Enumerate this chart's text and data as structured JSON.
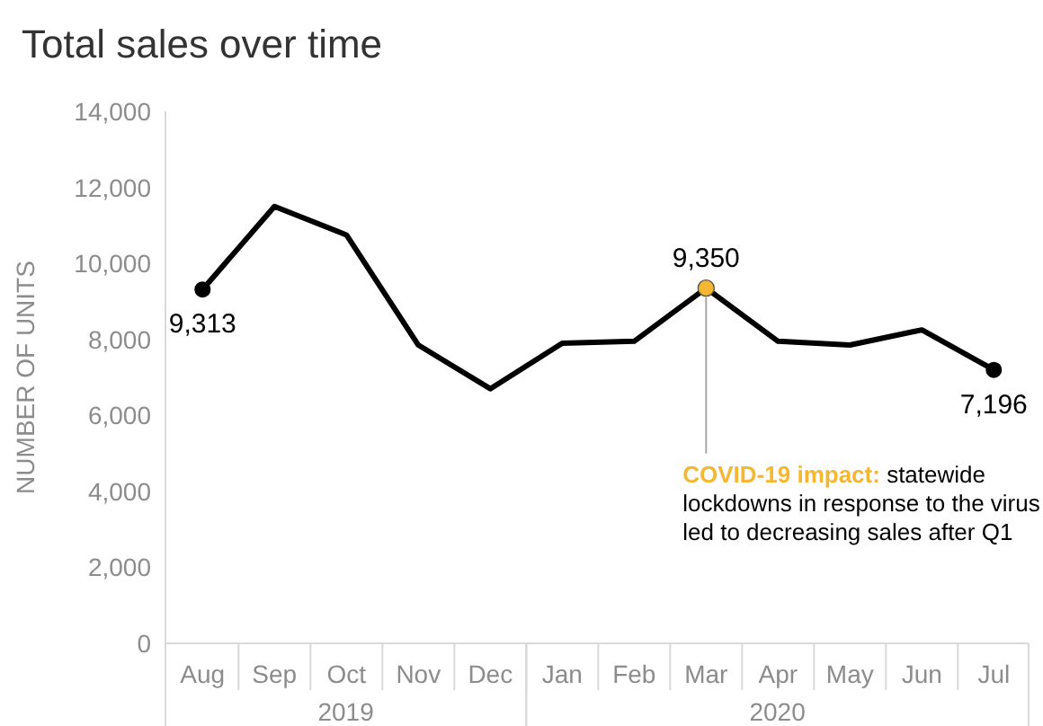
{
  "chart_data": {
    "type": "line",
    "title": "Total sales over time",
    "ylabel": "NUMBER OF UNITS",
    "x": [
      "2019-08",
      "2019-09",
      "2019-10",
      "2019-11",
      "2019-12",
      "2020-01",
      "2020-02",
      "2020-03",
      "2020-04",
      "2020-05",
      "2020-06",
      "2020-07"
    ],
    "xlim": [
      "2019-07-16",
      "2020-07-16"
    ],
    "xticks": [
      {
        "value": "2019-08",
        "label": "Aug"
      },
      {
        "value": "2019-09",
        "label": "Sep"
      },
      {
        "value": "2019-10",
        "label": "Oct"
      },
      {
        "value": "2019-11",
        "label": "Nov"
      },
      {
        "value": "2019-12",
        "label": "Dec"
      },
      {
        "value": "2020-01",
        "label": "Jan"
      },
      {
        "value": "2020-02",
        "label": "Feb"
      },
      {
        "value": "2020-03",
        "label": "Mar"
      },
      {
        "value": "2020-04",
        "label": "Apr"
      },
      {
        "value": "2020-05",
        "label": "May"
      },
      {
        "value": "2020-06",
        "label": "Jun"
      },
      {
        "value": "2020-07",
        "label": "Jul"
      }
    ],
    "series": [
      {
        "color": "#000000",
        "values": [
          9313,
          11500,
          10750,
          7850,
          6700,
          7900,
          7950,
          9350,
          7950,
          7850,
          8250,
          7196
        ],
        "value_labels": [
          "9,313",
          null,
          null,
          null,
          null,
          null,
          null,
          "9,350",
          null,
          null,
          null,
          "7,196"
        ],
        "colors": [
          "#000000",
          null,
          null,
          null,
          null,
          null,
          null,
          "#f5b731",
          null,
          null,
          null,
          "#000000"
        ]
      }
    ],
    "ylim": [
      0,
      14000
    ],
    "yticks": [
      0,
      {
        "value": 2000,
        "label": "2,000"
      },
      {
        "value": 4000,
        "label": "4,000"
      },
      {
        "value": 6000,
        "label": "6,000"
      },
      {
        "value": 8000,
        "label": "8,000"
      },
      {
        "value": 10000,
        "label": "10,000"
      },
      {
        "value": 12000,
        "label": "12,000"
      },
      {
        "value": 14000,
        "label": "14,000"
      }
    ],
    "annotations": [
      "2019",
      "2020",
      {
        "text": "COVID-19 impact: statewide lockdowns in response to the virus led to decreasing sales after Q1",
        "x": "2020-03",
        "y": 9350
      }
    ],
    "grid": false,
    "legend": false,
    "line_style": "solid"
  }
}
